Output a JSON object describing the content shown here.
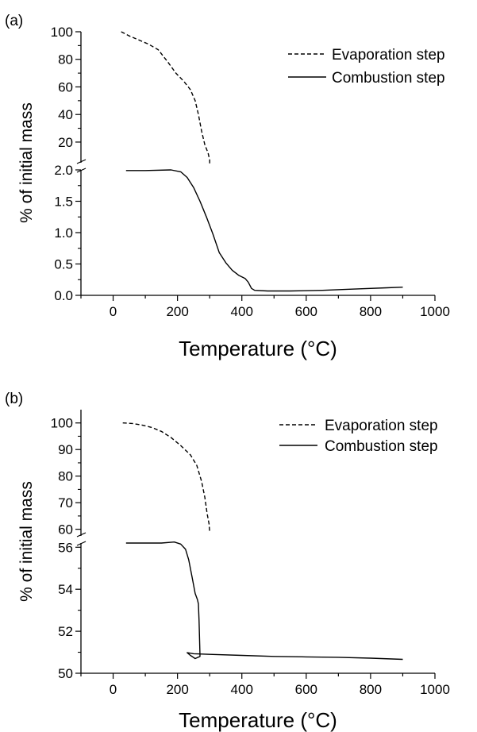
{
  "chart_data": [
    {
      "panel_label": "(a)",
      "type": "line",
      "xlabel": "Temperature (°C)",
      "ylabel": "% of initial mass",
      "xlim": [
        -100,
        1000
      ],
      "x_ticks": [
        0,
        200,
        400,
        600,
        800,
        1000
      ],
      "y_axis_break": true,
      "ylim_upper": [
        5,
        100
      ],
      "yticks_upper": [
        20,
        40,
        60,
        80,
        100
      ],
      "ylim_lower": [
        0,
        2.0
      ],
      "yticks_lower": [
        "0.0",
        "0.5",
        "1.0",
        "1.5",
        "2.0"
      ],
      "legend": {
        "location": "top-right",
        "entries": [
          "Evaporation step",
          "Combustion step"
        ]
      },
      "series": [
        {
          "name": "Evaporation step",
          "style": "dashed",
          "segment": "upper",
          "points": [
            [
              25,
              100
            ],
            [
              50,
              97
            ],
            [
              80,
              94
            ],
            [
              110,
              91
            ],
            [
              140,
              87
            ],
            [
              170,
              78
            ],
            [
              195,
              70
            ],
            [
              220,
              64
            ],
            [
              240,
              58
            ],
            [
              255,
              50
            ],
            [
              265,
              40
            ],
            [
              275,
              28
            ],
            [
              285,
              18
            ],
            [
              295,
              12
            ],
            [
              300,
              7
            ],
            [
              300,
              4
            ]
          ]
        },
        {
          "name": "Combustion step",
          "style": "solid",
          "segment": "lower",
          "points": [
            [
              40,
              1.99
            ],
            [
              100,
              1.99
            ],
            [
              180,
              2.0
            ],
            [
              210,
              1.97
            ],
            [
              230,
              1.88
            ],
            [
              250,
              1.72
            ],
            [
              270,
              1.5
            ],
            [
              290,
              1.25
            ],
            [
              310,
              0.98
            ],
            [
              330,
              0.68
            ],
            [
              350,
              0.52
            ],
            [
              370,
              0.4
            ],
            [
              390,
              0.32
            ],
            [
              410,
              0.27
            ],
            [
              420,
              0.21
            ],
            [
              430,
              0.11
            ],
            [
              440,
              0.08
            ],
            [
              480,
              0.07
            ],
            [
              550,
              0.07
            ],
            [
              650,
              0.08
            ],
            [
              750,
              0.1
            ],
            [
              850,
              0.12
            ],
            [
              900,
              0.13
            ]
          ]
        }
      ]
    },
    {
      "panel_label": "(b)",
      "type": "line",
      "xlabel": "Temperature (°C)",
      "ylabel": "% of initial mass",
      "xlim": [
        -100,
        1000
      ],
      "x_ticks": [
        0,
        200,
        400,
        600,
        800,
        1000
      ],
      "y_axis_break": true,
      "ylim_upper": [
        57.5,
        105
      ],
      "yticks_upper": [
        60,
        70,
        80,
        90,
        100
      ],
      "ylim_lower": [
        50,
        56.2
      ],
      "yticks_lower": [
        50,
        52,
        54,
        56
      ],
      "legend": {
        "location": "top-right",
        "entries": [
          "Evaporation step",
          "Combustion step"
        ]
      },
      "series": [
        {
          "name": "Evaporation step",
          "style": "dashed",
          "segment": "upper",
          "points": [
            [
              30,
              100
            ],
            [
              60,
              99.8
            ],
            [
              90,
              99.2
            ],
            [
              120,
              98.3
            ],
            [
              150,
              96.8
            ],
            [
              180,
              94.5
            ],
            [
              210,
              91.5
            ],
            [
              240,
              88
            ],
            [
              260,
              84
            ],
            [
              275,
              78
            ],
            [
              285,
              72
            ],
            [
              292,
              66
            ],
            [
              298,
              62
            ],
            [
              300,
              59
            ]
          ]
        },
        {
          "name": "Combustion step",
          "style": "solid",
          "segment": "lower",
          "points": [
            [
              40,
              56.2
            ],
            [
              100,
              56.2
            ],
            [
              150,
              56.2
            ],
            [
              190,
              56.25
            ],
            [
              210,
              56.15
            ],
            [
              225,
              55.9
            ],
            [
              235,
              55.4
            ],
            [
              245,
              54.6
            ],
            [
              255,
              53.8
            ],
            [
              262,
              53.5
            ],
            [
              265,
              53.3
            ],
            [
              267,
              52.5
            ],
            [
              269,
              51.4
            ],
            [
              270,
              50.8
            ],
            [
              255,
              50.7
            ],
            [
              240,
              50.85
            ],
            [
              230,
              50.98
            ],
            [
              250,
              50.93
            ],
            [
              300,
              50.9
            ],
            [
              400,
              50.85
            ],
            [
              500,
              50.8
            ],
            [
              600,
              50.78
            ],
            [
              700,
              50.76
            ],
            [
              800,
              50.72
            ],
            [
              900,
              50.66
            ]
          ]
        }
      ]
    }
  ]
}
